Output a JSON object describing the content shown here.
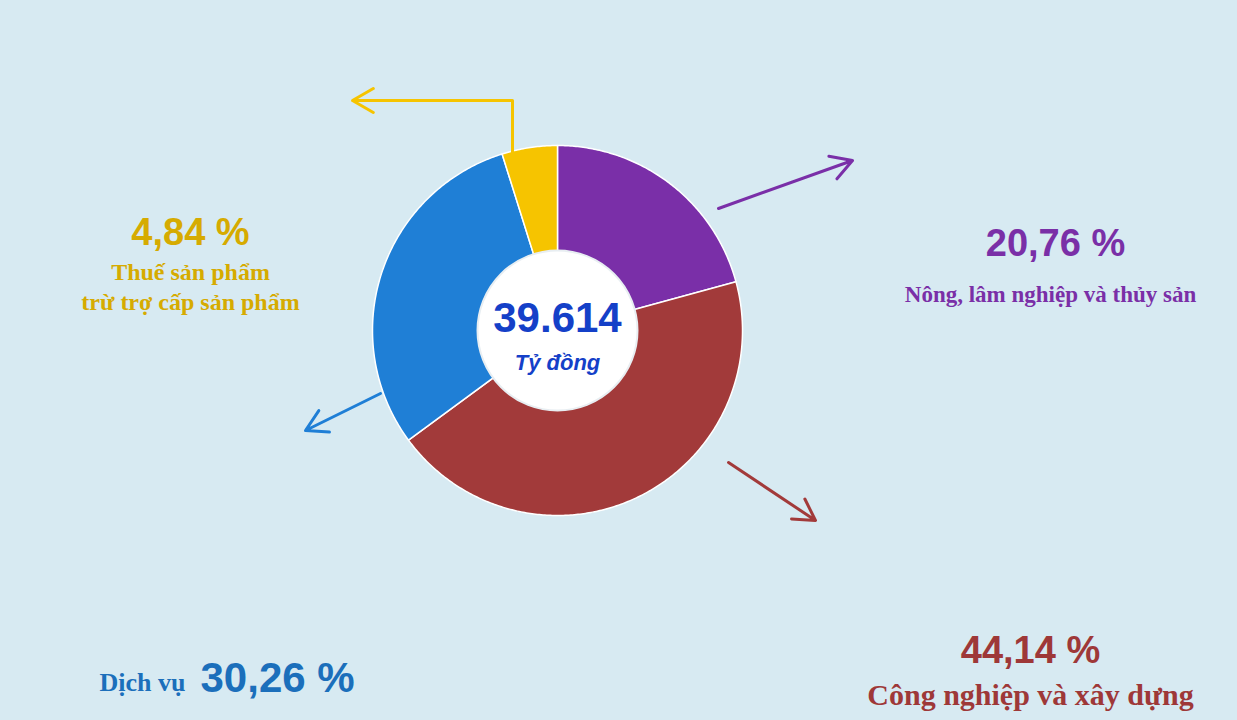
{
  "chart_data": {
    "type": "donut",
    "categories": [
      "Nông, lâm nghiệp và thủy sản",
      "Công nghiệp và xây dựng",
      "Dịch vụ",
      "Thuế sản phẩm trừ trợ cấp sản phẩm"
    ],
    "values": [
      20.76,
      44.14,
      30.26,
      4.84
    ],
    "value_labels": [
      "20,76 %",
      "44,14 %",
      "30,26 %",
      "4,84 %"
    ],
    "colors": [
      "#7a2fa8",
      "#a23a3a",
      "#1f7fd6",
      "#f6c400"
    ],
    "data_labels": true,
    "center_label": "39.614",
    "center_sublabel": "Tỷ đồng"
  }
}
